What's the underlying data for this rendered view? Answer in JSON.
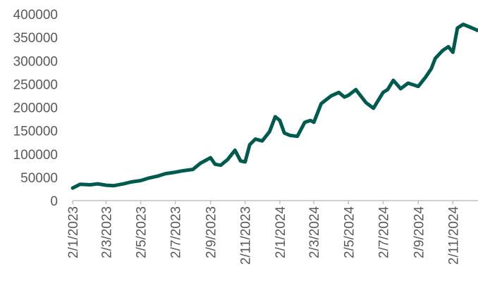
{
  "chart_data": {
    "type": "line",
    "title": "",
    "xlabel": "",
    "ylabel": "",
    "ylim": [
      0,
      400000
    ],
    "yticks": [
      0,
      50000,
      100000,
      150000,
      200000,
      250000,
      300000,
      350000,
      400000
    ],
    "ytick_labels": [
      "0",
      "50000",
      "100000",
      "150000",
      "200000",
      "250000",
      "300000",
      "350000",
      "400000"
    ],
    "xtick_labels": [
      "2/1/2023",
      "2/3/2023",
      "2/5/2023",
      "2/7/2023",
      "2/9/2023",
      "2/11/2023",
      "2/1/2024",
      "2/3/2024",
      "2/5/2024",
      "2/7/2024",
      "2/9/2024",
      "2/11/2024"
    ],
    "grid": false,
    "legend": "none",
    "line_color": "#005a4e",
    "series": [
      {
        "x": [
          "2/1/2023",
          "15/1/2023",
          "2/2/2023",
          "15/2/2023",
          "2/3/2023",
          "15/3/2023",
          "2/4/2023",
          "15/4/2023",
          "2/5/2023",
          "15/5/2023",
          "2/6/2023",
          "15/6/2023",
          "2/7/2023",
          "15/7/2023",
          "2/8/2023",
          "15/8/2023",
          "2/9/2023",
          "10/9/2023",
          "20/9/2023",
          "2/10/2023",
          "15/10/2023",
          "25/10/2023",
          "2/11/2023",
          "10/11/2023",
          "20/11/2023",
          "2/12/2023",
          "15/12/2023",
          "25/12/2023",
          "2/1/2024",
          "10/1/2024",
          "20/1/2024",
          "2/2/2024",
          "15/2/2024",
          "25/2/2024",
          "2/3/2024",
          "15/3/2024",
          "2/4/2024",
          "15/4/2024",
          "25/4/2024",
          "2/5/2024",
          "15/5/2024",
          "2/6/2024",
          "15/6/2024",
          "25/6/2024",
          "2/7/2024",
          "10/7/2024",
          "20/7/2024",
          "2/8/2024",
          "15/8/2024",
          "2/9/2024",
          "15/9/2024",
          "25/9/2024",
          "2/10/2024",
          "15/10/2024",
          "25/10/2024",
          "2/11/2024",
          "10/11/2024",
          "20/11/2024",
          "2/12/2024",
          "10/12/2024",
          "15/12/2024",
          "25/12/2024",
          "31/12/2024"
        ],
        "values": [
          27000,
          35000,
          34000,
          36000,
          33000,
          32000,
          36000,
          40000,
          43000,
          48000,
          53000,
          58000,
          61000,
          64000,
          67000,
          80000,
          92000,
          78000,
          76000,
          88000,
          108000,
          85000,
          83000,
          120000,
          132000,
          128000,
          148000,
          180000,
          172000,
          145000,
          140000,
          138000,
          168000,
          172000,
          168000,
          208000,
          225000,
          232000,
          222000,
          226000,
          238000,
          210000,
          198000,
          218000,
          232000,
          238000,
          258000,
          240000,
          252000,
          245000,
          265000,
          283000,
          305000,
          322000,
          330000,
          318000,
          370000,
          378000,
          372000,
          368000,
          365000,
          370000,
          368000
        ]
      }
    ]
  }
}
